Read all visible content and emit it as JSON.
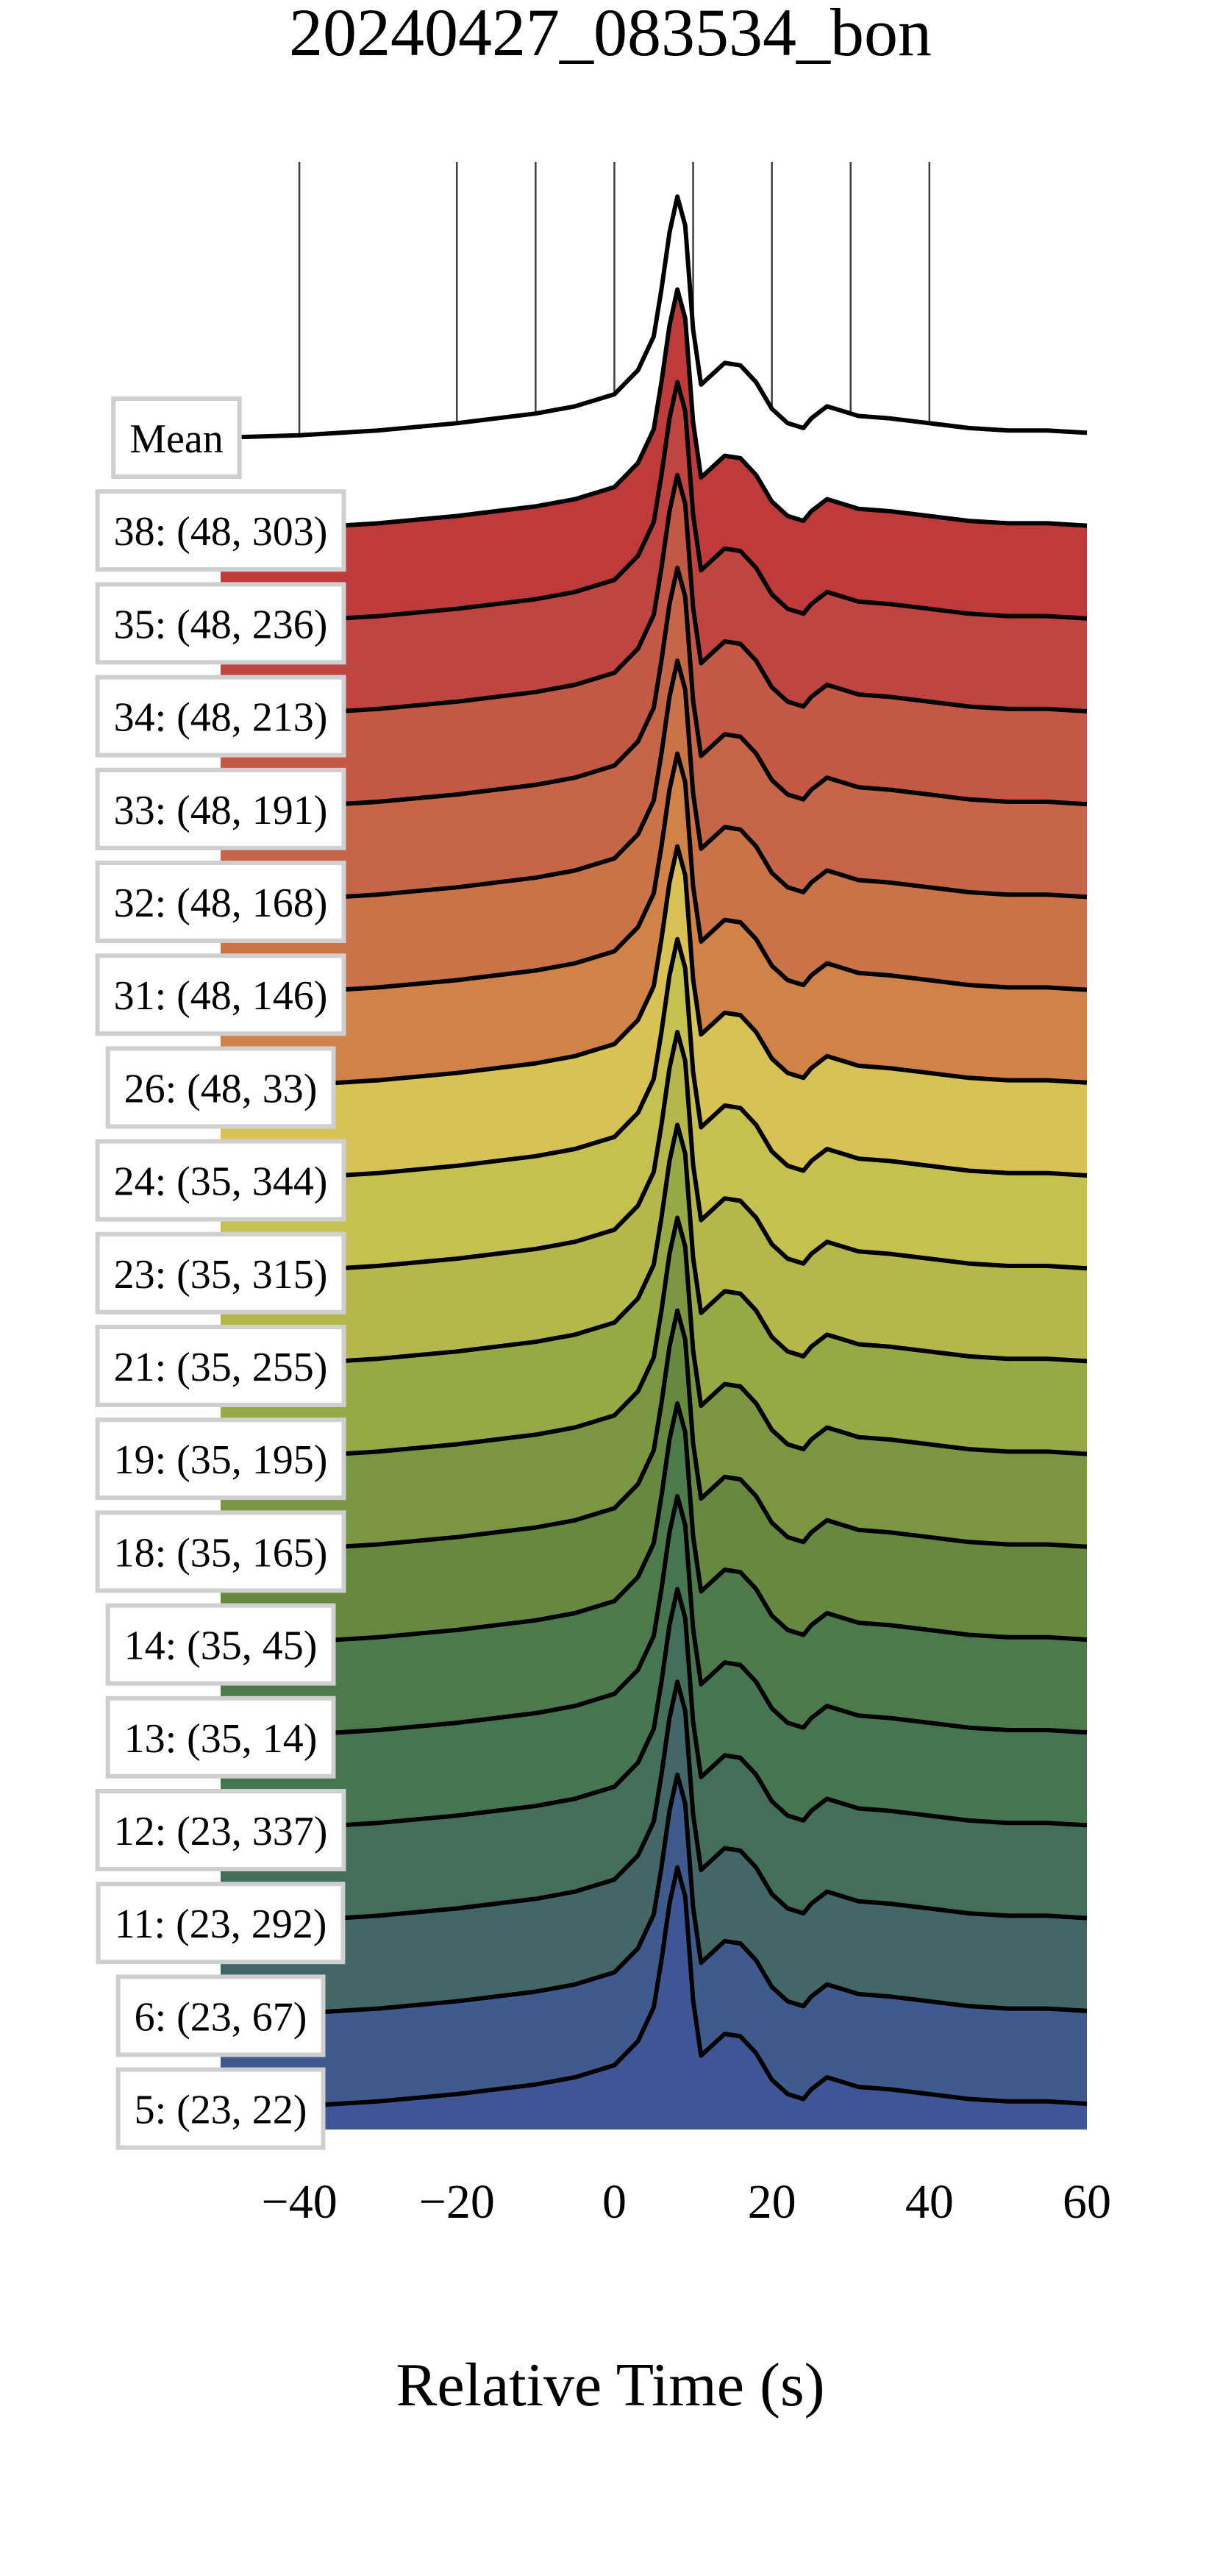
{
  "chart_data": {
    "type": "ridgeline",
    "title": "20240427_083534_bon",
    "xlabel": "Relative Time (s)",
    "xlim": [
      -50,
      60
    ],
    "xticks": [
      -40,
      -20,
      0,
      20,
      40,
      60
    ],
    "xtick_labels": [
      "−40",
      "−20",
      "0",
      "20",
      "40",
      "60"
    ],
    "vlines_x": [
      -40,
      -20,
      -10,
      0,
      10,
      20,
      30,
      40
    ],
    "profile_x": [
      -50,
      -40,
      -30,
      -20,
      -10,
      -5,
      0,
      3,
      5,
      6,
      7,
      8,
      9,
      10,
      11,
      12,
      14,
      16,
      18,
      20,
      22,
      24,
      25,
      27,
      29,
      31,
      35,
      40,
      45,
      50,
      55,
      60
    ],
    "profile_base": [
      0,
      0.01,
      0.03,
      0.06,
      0.1,
      0.13,
      0.18,
      0.28,
      0.42,
      0.62,
      0.85,
      1.0,
      0.88,
      0.45,
      0.22,
      0.25,
      0.31,
      0.3,
      0.23,
      0.12,
      0.06,
      0.04,
      0.08,
      0.13,
      0.11,
      0.09,
      0.08,
      0.06,
      0.04,
      0.03,
      0.03,
      0.02
    ],
    "series": [
      {
        "name": "Mean",
        "color": "#ffffff",
        "amp": 0.95
      },
      {
        "name": "38: (48, 303)",
        "color": "#bf3a3a",
        "amp": 0.95
      },
      {
        "name": "35: (48, 236)",
        "color": "#c04540",
        "amp": 0.95
      },
      {
        "name": "34: (48, 213)",
        "color": "#c25845",
        "amp": 0.95
      },
      {
        "name": "33: (48, 191)",
        "color": "#c66648",
        "amp": 0.95
      },
      {
        "name": "32: (48, 168)",
        "color": "#ca7248",
        "amp": 0.95
      },
      {
        "name": "31: (48, 146)",
        "color": "#d08249",
        "amp": 0.95
      },
      {
        "name": "26: (48, 33)",
        "color": "#d8c155",
        "amp": 0.95
      },
      {
        "name": "24: (35, 344)",
        "color": "#c5c151",
        "amp": 0.95
      },
      {
        "name": "23: (35, 315)",
        "color": "#b4b84c",
        "amp": 0.95
      },
      {
        "name": "21: (35, 255)",
        "color": "#97a945",
        "amp": 0.95
      },
      {
        "name": "19: (35, 195)",
        "color": "#7a9640",
        "amp": 0.95
      },
      {
        "name": "18: (35, 165)",
        "color": "#66893f",
        "amp": 0.95
      },
      {
        "name": "14: (35, 45)",
        "color": "#4c7a4b",
        "amp": 0.95
      },
      {
        "name": "13: (35, 14)",
        "color": "#467552",
        "amp": 0.95
      },
      {
        "name": "12: (23, 337)",
        "color": "#426e5a",
        "amp": 0.95
      },
      {
        "name": "11: (23, 292)",
        "color": "#426766",
        "amp": 0.95
      },
      {
        "name": "6: (23, 67)",
        "color": "#3f5a8d",
        "amp": 0.95
      },
      {
        "name": "5: (23, 22)",
        "color": "#3f5696",
        "amp": 0.95
      }
    ]
  }
}
